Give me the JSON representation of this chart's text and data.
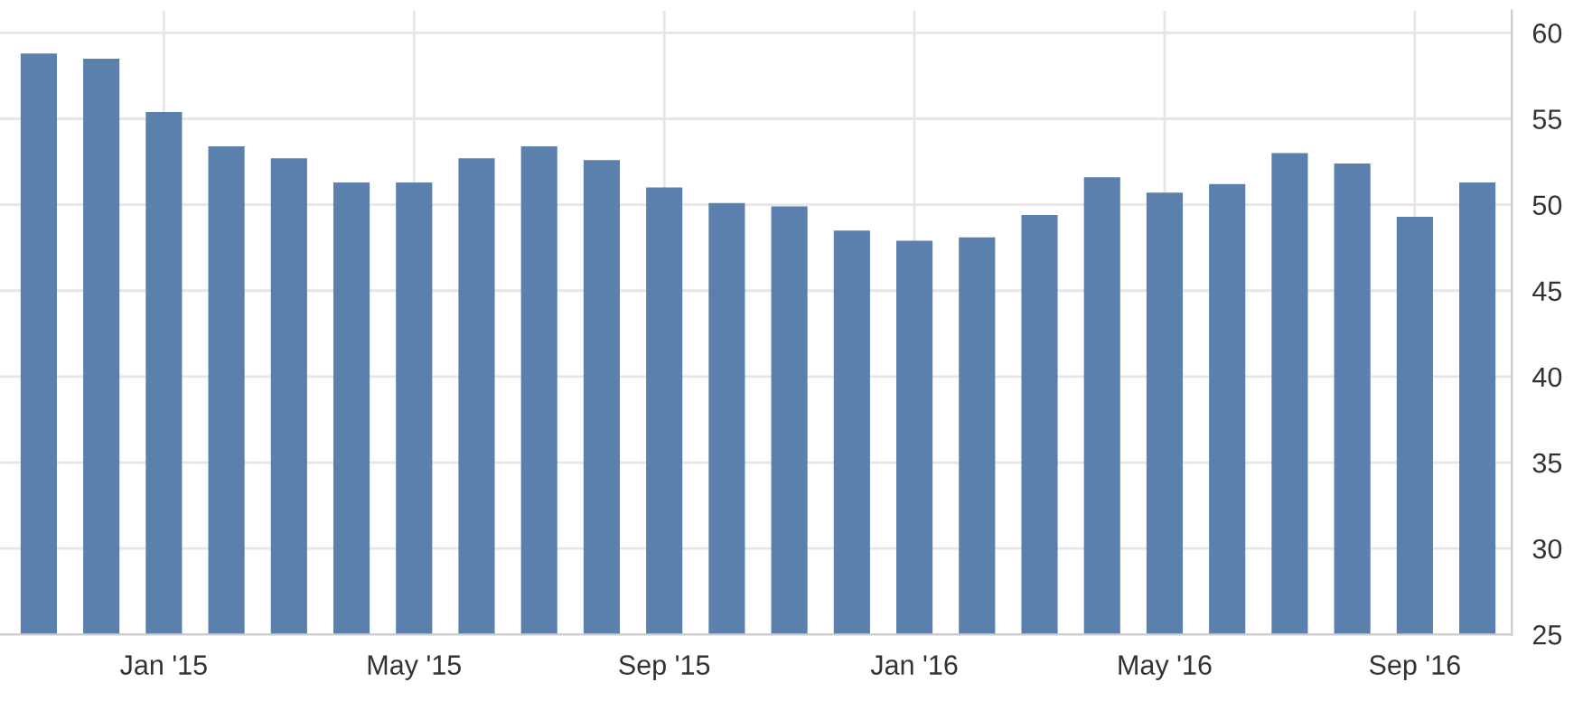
{
  "chart_data": {
    "type": "bar",
    "categories": [
      null,
      null,
      "Jan '15",
      null,
      null,
      null,
      "May '15",
      null,
      null,
      null,
      "Sep '15",
      null,
      null,
      null,
      "Jan '16",
      null,
      null,
      null,
      "May '16",
      null,
      null,
      null,
      "Sep '16",
      null
    ],
    "values": [
      58.8,
      58.5,
      55.4,
      53.4,
      52.7,
      51.3,
      51.3,
      52.7,
      53.4,
      52.6,
      51.0,
      50.1,
      49.9,
      48.5,
      47.9,
      48.1,
      49.4,
      51.6,
      50.7,
      51.2,
      53.0,
      52.4,
      49.3,
      51.3
    ],
    "color": "#5b80ad",
    "ylim": [
      25,
      61.3
    ],
    "yticks": [
      25,
      30,
      35,
      40,
      45,
      50,
      55,
      60
    ],
    "grid": true
  }
}
